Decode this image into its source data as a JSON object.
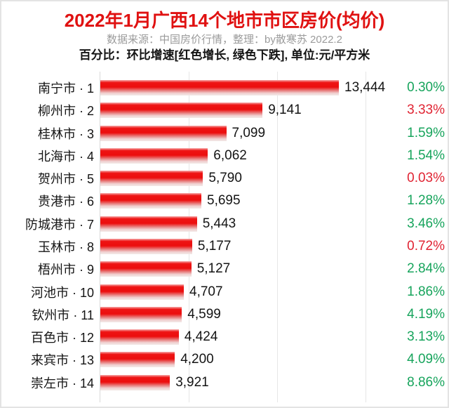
{
  "header": {
    "title": "2022年1月广西14个地市市区房价(均价)",
    "subtitle": "数据来源：中国房价行情，整理：by散寒苏 2022.2",
    "note": "百分比：环比增速[红色增长, 绿色下跌], 单位:元/平方米"
  },
  "colors": {
    "title_red": "#e01111",
    "bar_red": "#ee1414",
    "pct_up_red": "#e02433",
    "pct_down_green": "#17a45c",
    "subtitle_gray": "#9b9b9b",
    "gridline": "#e6e6e6",
    "axis_line": "#d9d9d9",
    "text_black": "#141414"
  },
  "chart_data": {
    "type": "bar",
    "orientation": "horizontal",
    "title": "2022年1月广西14个地市市区房价(均价)",
    "unit": "元/平方米",
    "rank_separator": " · ",
    "value_axis": {
      "min": 0,
      "max": 15000,
      "gridline_values": [
        5000,
        10000,
        15000
      ],
      "grid": true
    },
    "legend": {
      "up_label": "红色增长",
      "down_label": "绿色下跌"
    },
    "rows": [
      {
        "rank": 1,
        "city": "南宁市",
        "price": 13444,
        "price_label": "13,444",
        "change": "0.30%",
        "trend": "down"
      },
      {
        "rank": 2,
        "city": "柳州市",
        "price": 9141,
        "price_label": "9,141",
        "change": "3.33%",
        "trend": "up"
      },
      {
        "rank": 3,
        "city": "桂林市",
        "price": 7099,
        "price_label": "7,099",
        "change": "1.59%",
        "trend": "down"
      },
      {
        "rank": 4,
        "city": "北海市",
        "price": 6062,
        "price_label": "6,062",
        "change": "1.54%",
        "trend": "down"
      },
      {
        "rank": 5,
        "city": "贺州市",
        "price": 5790,
        "price_label": "5,790",
        "change": "0.03%",
        "trend": "up"
      },
      {
        "rank": 6,
        "city": "贵港市",
        "price": 5695,
        "price_label": "5,695",
        "change": "1.28%",
        "trend": "down"
      },
      {
        "rank": 7,
        "city": "防城港市",
        "price": 5443,
        "price_label": "5,443",
        "change": "3.46%",
        "trend": "down"
      },
      {
        "rank": 8,
        "city": "玉林市",
        "price": 5177,
        "price_label": "5,177",
        "change": "0.72%",
        "trend": "up"
      },
      {
        "rank": 9,
        "city": "梧州市",
        "price": 5127,
        "price_label": "5,127",
        "change": "2.84%",
        "trend": "down"
      },
      {
        "rank": 10,
        "city": "河池市",
        "price": 4707,
        "price_label": "4,707",
        "change": "1.86%",
        "trend": "down"
      },
      {
        "rank": 11,
        "city": "钦州市",
        "price": 4599,
        "price_label": "4,599",
        "change": "4.19%",
        "trend": "down"
      },
      {
        "rank": 12,
        "city": "百色市",
        "price": 4424,
        "price_label": "4,424",
        "change": "3.13%",
        "trend": "down"
      },
      {
        "rank": 13,
        "city": "来宾市",
        "price": 4200,
        "price_label": "4,200",
        "change": "4.09%",
        "trend": "down"
      },
      {
        "rank": 14,
        "city": "崇左市",
        "price": 3921,
        "price_label": "3,921",
        "change": "8.86%",
        "trend": "down"
      }
    ]
  }
}
